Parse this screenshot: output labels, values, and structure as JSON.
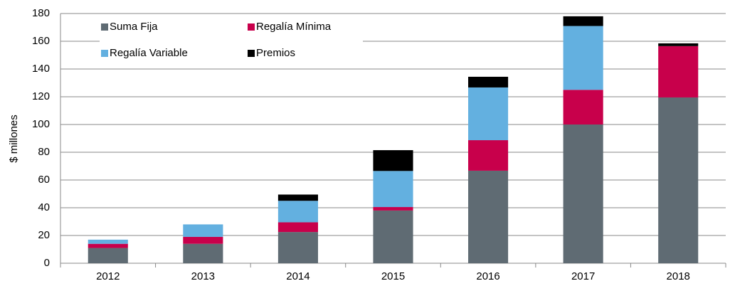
{
  "chart_data": {
    "type": "stacked_bar",
    "ylabel": "$ millones",
    "categories": [
      "2012",
      "2013",
      "2014",
      "2015",
      "2016",
      "2017",
      "2018"
    ],
    "series": [
      {
        "name": "Suma Fija",
        "color": "#5f6b73",
        "values": [
          11,
          14,
          22.5,
          38,
          66.7,
          100,
          119.5
        ]
      },
      {
        "name": "Regalía Mínima",
        "color": "#c8004b",
        "values": [
          3,
          5,
          7,
          2.5,
          22,
          25,
          37
        ]
      },
      {
        "name": "Regalía Variable",
        "color": "#63b0e0",
        "values": [
          3,
          9,
          15.5,
          26,
          38,
          46,
          0
        ]
      },
      {
        "name": "Premios",
        "color": "#000000",
        "values": [
          0,
          0,
          4.5,
          15,
          7.7,
          7,
          2
        ]
      }
    ],
    "ylim": [
      0,
      180
    ],
    "yticks": [
      0,
      20,
      40,
      60,
      80,
      100,
      120,
      140,
      160,
      180
    ],
    "grid": true,
    "legend": "upper left"
  }
}
